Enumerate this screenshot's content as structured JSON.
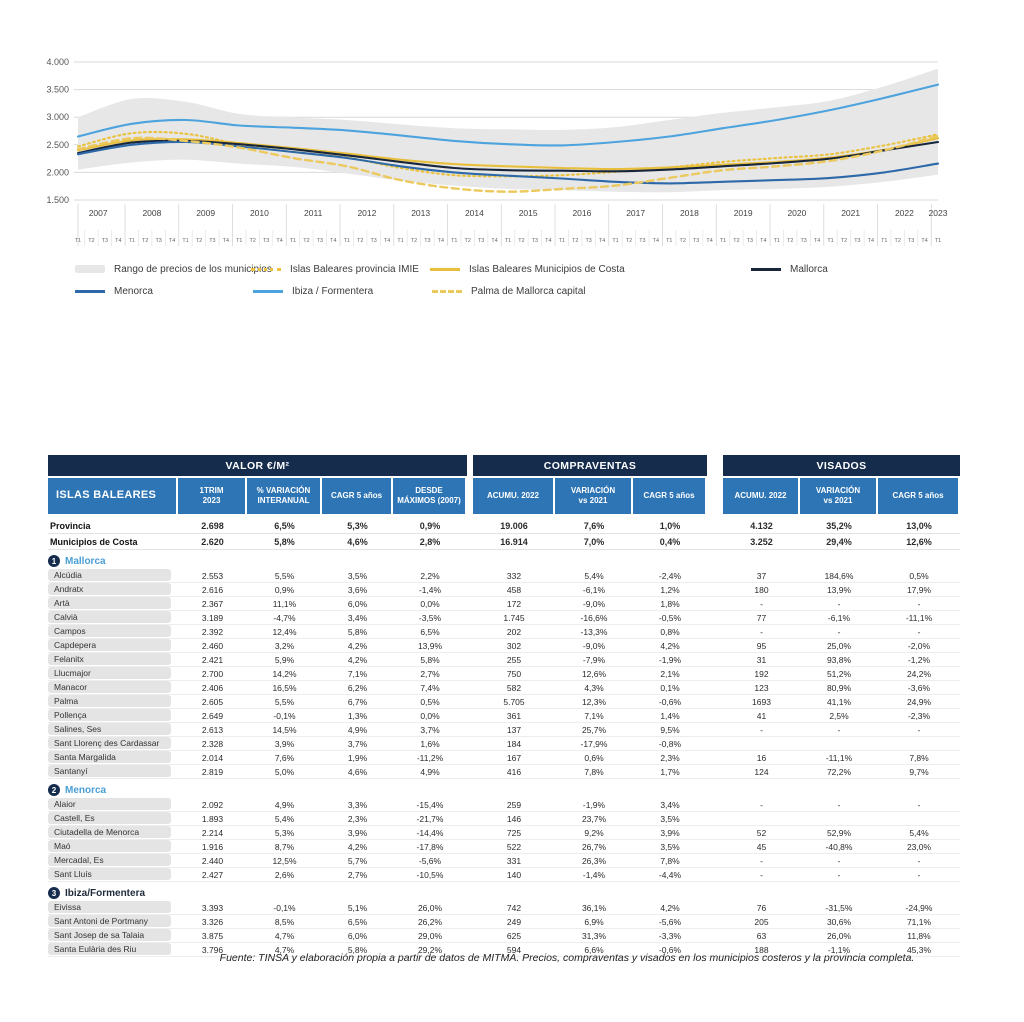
{
  "page": {
    "footer": "Fuente: TINSA y elaboración propia a partir de datos de MITMA. Precios, compraventas y visados en los municipios costeros y la provincia completa."
  },
  "chart_data": {
    "type": "line",
    "title": "",
    "xlabel": "",
    "ylabel": "",
    "ylim": [
      1500,
      4000
    ],
    "y_ticks": [
      "4.000",
      "3.500",
      "3.000",
      "2.500",
      "2.000",
      "1.500"
    ],
    "grid": true,
    "x_years": [
      2007,
      2008,
      2009,
      2010,
      2011,
      2012,
      2013,
      2014,
      2015,
      2016,
      2017,
      2018,
      2019,
      2020,
      2021,
      2022,
      2023
    ],
    "x_axis_note": "quarterly axis T1-T4 from 2007T1 to 2023T1",
    "quarter_labels": [
      "T1",
      "T2",
      "T3",
      "T4"
    ],
    "band": {
      "name": "Rango de precios de los municipios",
      "color": "#e7e7e7",
      "upper": [
        3000,
        3330,
        3280,
        3060,
        3000,
        2950,
        2870,
        2800,
        2780,
        2770,
        2820,
        2950,
        3080,
        3180,
        3300,
        3560,
        3880
      ],
      "lower": [
        2050,
        2180,
        2230,
        2160,
        2100,
        1980,
        1850,
        1760,
        1700,
        1680,
        1650,
        1640,
        1680,
        1700,
        1740,
        1830,
        1960
      ]
    },
    "series": [
      {
        "name": "Islas Baleares provincia IMIE",
        "style": "dotted",
        "color": "#eac23f",
        "values": [
          2470,
          2710,
          2700,
          2510,
          2370,
          2270,
          2080,
          1950,
          1930,
          1950,
          2010,
          2090,
          2190,
          2260,
          2330,
          2490,
          2690
        ]
      },
      {
        "name": "Islas Baleares Municipios de Costa",
        "style": "solid",
        "color": "#e8bf3c",
        "values": [
          2400,
          2580,
          2600,
          2530,
          2440,
          2340,
          2230,
          2150,
          2110,
          2080,
          2060,
          2090,
          2140,
          2190,
          2270,
          2410,
          2620
        ]
      },
      {
        "name": "Mallorca",
        "style": "solid",
        "color": "#18263c",
        "values": [
          2350,
          2540,
          2570,
          2510,
          2420,
          2310,
          2190,
          2080,
          2040,
          2030,
          2020,
          2050,
          2110,
          2170,
          2250,
          2400,
          2550
        ]
      },
      {
        "name": "Menorca",
        "style": "solid",
        "color": "#2d69a8",
        "values": [
          2330,
          2500,
          2550,
          2470,
          2370,
          2260,
          2110,
          2000,
          1940,
          1890,
          1830,
          1800,
          1830,
          1860,
          1900,
          2000,
          2160
        ]
      },
      {
        "name": "Ibiza / Formentera",
        "style": "solid",
        "color": "#4da3dd",
        "values": [
          2650,
          2880,
          2950,
          2850,
          2810,
          2760,
          2670,
          2570,
          2510,
          2490,
          2550,
          2650,
          2800,
          2950,
          3130,
          3350,
          3590
        ]
      },
      {
        "name": "Palma de Mallorca capital",
        "style": "dashed",
        "color": "#ecc95e",
        "values": [
          2420,
          2620,
          2570,
          2450,
          2260,
          2110,
          1860,
          1710,
          1650,
          1700,
          1760,
          1900,
          2040,
          2110,
          2210,
          2400,
          2660
        ]
      }
    ],
    "legend_position": "bottom"
  },
  "legend": {
    "items": [
      {
        "label": "Rango de precios de los municipios",
        "swatch": "band",
        "color": "#e7e7e7"
      },
      {
        "label": "Islas Baleares provincia IMIE",
        "swatch": "dotted",
        "color": "#eac23f"
      },
      {
        "label": "Islas Baleares Municipios de Costa",
        "swatch": "solid",
        "color": "#e8bf3c"
      },
      {
        "label": "Mallorca",
        "swatch": "solid",
        "color": "#18263c"
      },
      {
        "label": "Menorca",
        "swatch": "solid",
        "color": "#2d69a8"
      },
      {
        "label": "Ibiza / Formentera",
        "swatch": "solid",
        "color": "#4da3dd"
      },
      {
        "label": "Palma de Mallorca capital",
        "swatch": "dashed",
        "color": "#ecc95e"
      }
    ]
  },
  "table": {
    "row_header": "ISLAS BALEARES",
    "groups": [
      {
        "title": "VALOR €/M²",
        "cols": [
          "1TRIM\n2023",
          "% VARIACIÓN\nINTERANUAL",
          "CAGR 5 años",
          "DESDE\nMÁXIMOS (2007)"
        ]
      },
      {
        "title": "COMPRAVENTAS",
        "cols": [
          "ACUMU. 2022",
          "VARIACIÓN\nvs 2021",
          "CAGR 5 años"
        ]
      },
      {
        "title": "VISADOS",
        "cols": [
          "ACUMU. 2022",
          "VARIACIÓN\nvs 2021",
          "CAGR 5 años"
        ]
      }
    ],
    "summary_rows": [
      {
        "name": "Provincia",
        "values": [
          "2.698",
          "6,5%",
          "5,3%",
          "0,9%",
          "19.006",
          "7,6%",
          "1,0%",
          "4.132",
          "35,2%",
          "13,0%"
        ]
      },
      {
        "name": "Municipios de Costa",
        "values": [
          "2.620",
          "5,8%",
          "4,6%",
          "2,8%",
          "16.914",
          "7,0%",
          "0,4%",
          "3.252",
          "29,4%",
          "12,6%"
        ]
      }
    ],
    "sections": [
      {
        "num": "1",
        "name": "Mallorca",
        "name_color": "#4a9ed6",
        "rows": [
          {
            "name": "Alcúdia",
            "values": [
              "2.553",
              "5,5%",
              "3,5%",
              "2,2%",
              "332",
              "5,4%",
              "-2,4%",
              "37",
              "184,6%",
              "0,5%"
            ]
          },
          {
            "name": "Andratx",
            "values": [
              "2.616",
              "0,9%",
              "3,6%",
              "-1,4%",
              "458",
              "-6,1%",
              "1,2%",
              "180",
              "13,9%",
              "17,9%"
            ]
          },
          {
            "name": "Artà",
            "values": [
              "2.367",
              "11,1%",
              "6,0%",
              "0,0%",
              "172",
              "-9,0%",
              "1,8%",
              "-",
              "-",
              "-"
            ]
          },
          {
            "name": "Calvià",
            "values": [
              "3.189",
              "-4,7%",
              "3,4%",
              "-3,5%",
              "1.745",
              "-16,6%",
              "-0,5%",
              "77",
              "-6,1%",
              "-11,1%"
            ]
          },
          {
            "name": "Campos",
            "values": [
              "2.392",
              "12,4%",
              "5,8%",
              "6,5%",
              "202",
              "-13,3%",
              "0,8%",
              "-",
              "-",
              "-"
            ]
          },
          {
            "name": "Capdepera",
            "values": [
              "2.460",
              "3,2%",
              "4,2%",
              "13,9%",
              "302",
              "-9,0%",
              "4,2%",
              "95",
              "25,0%",
              "-2,0%"
            ]
          },
          {
            "name": "Felanitx",
            "values": [
              "2.421",
              "5,9%",
              "4,2%",
              "5,8%",
              "255",
              "-7,9%",
              "-1,9%",
              "31",
              "93,8%",
              "-1,2%"
            ]
          },
          {
            "name": "Llucmajor",
            "values": [
              "2.700",
              "14,2%",
              "7,1%",
              "2,7%",
              "750",
              "12,6%",
              "2,1%",
              "192",
              "51,2%",
              "24,2%"
            ]
          },
          {
            "name": "Manacor",
            "values": [
              "2.406",
              "16,5%",
              "6,2%",
              "7,4%",
              "582",
              "4,3%",
              "0,1%",
              "123",
              "80,9%",
              "-3,6%"
            ]
          },
          {
            "name": "Palma",
            "values": [
              "2.605",
              "5,5%",
              "6,7%",
              "0,5%",
              "5.705",
              "12,3%",
              "-0,6%",
              "1693",
              "41,1%",
              "24,9%"
            ]
          },
          {
            "name": "Pollença",
            "values": [
              "2.649",
              "-0,1%",
              "1,3%",
              "0,0%",
              "361",
              "7,1%",
              "1,4%",
              "41",
              "2,5%",
              "-2,3%"
            ]
          },
          {
            "name": "Salines, Ses",
            "values": [
              "2.613",
              "14,5%",
              "4,9%",
              "3,7%",
              "137",
              "25,7%",
              "9,5%",
              "-",
              "-",
              "-"
            ]
          },
          {
            "name": "Sant Llorenç des Cardassar",
            "values": [
              "2.328",
              "3,9%",
              "3,7%",
              "1,6%",
              "184",
              "-17,9%",
              "-0,8%",
              "",
              "",
              ""
            ]
          },
          {
            "name": "Santa Margalida",
            "values": [
              "2.014",
              "7,6%",
              "1,9%",
              "-11,2%",
              "167",
              "0,6%",
              "2,3%",
              "16",
              "-11,1%",
              "7,8%"
            ]
          },
          {
            "name": "Santanyí",
            "values": [
              "2.819",
              "5,0%",
              "4,6%",
              "4,9%",
              "416",
              "7,8%",
              "1,7%",
              "124",
              "72,2%",
              "9,7%"
            ]
          }
        ]
      },
      {
        "num": "2",
        "name": "Menorca",
        "name_color": "#4a9ed6",
        "rows": [
          {
            "name": "Alaior",
            "values": [
              "2.092",
              "4,9%",
              "3,3%",
              "-15,4%",
              "259",
              "-1,9%",
              "3,4%",
              "-",
              "-",
              "-"
            ]
          },
          {
            "name": "Castell, Es",
            "values": [
              "1.893",
              "5,4%",
              "2,3%",
              "-21,7%",
              "146",
              "23,7%",
              "3,5%",
              "",
              "",
              ""
            ]
          },
          {
            "name": "Ciutadella de Menorca",
            "values": [
              "2.214",
              "5,3%",
              "3,9%",
              "-14,4%",
              "725",
              "9,2%",
              "3,9%",
              "52",
              "52,9%",
              "5,4%"
            ]
          },
          {
            "name": "Maó",
            "values": [
              "1.916",
              "8,7%",
              "4,2%",
              "-17,8%",
              "522",
              "26,7%",
              "3,5%",
              "45",
              "-40,8%",
              "23,0%"
            ]
          },
          {
            "name": "Mercadal, Es",
            "values": [
              "2.440",
              "12,5%",
              "5,7%",
              "-5,6%",
              "331",
              "26,3%",
              "7,8%",
              "-",
              "-",
              "-"
            ]
          },
          {
            "name": "Sant Lluís",
            "values": [
              "2.427",
              "2,6%",
              "2,7%",
              "-10,5%",
              "140",
              "-1,4%",
              "-4,4%",
              "-",
              "-",
              "-"
            ]
          }
        ]
      },
      {
        "num": "3",
        "name": "Ibiza/Formentera",
        "name_color": "#1e2a3a",
        "rows": [
          {
            "name": "Eivissa",
            "values": [
              "3.393",
              "-0,1%",
              "5,1%",
              "26,0%",
              "742",
              "36,1%",
              "4,2%",
              "76",
              "-31,5%",
              "-24,9%"
            ]
          },
          {
            "name": "Sant Antoni de Portmany",
            "values": [
              "3.326",
              "8,5%",
              "6,5%",
              "26,2%",
              "249",
              "6,9%",
              "-5,6%",
              "205",
              "30,6%",
              "71,1%"
            ]
          },
          {
            "name": "Sant Josep de sa Talaia",
            "values": [
              "3.875",
              "4,7%",
              "6,0%",
              "29,0%",
              "625",
              "31,3%",
              "-3,3%",
              "63",
              "26,0%",
              "11,8%"
            ]
          },
          {
            "name": "Santa Eulària des Riu",
            "values": [
              "3.796",
              "4,7%",
              "5,8%",
              "29,2%",
              "594",
              "6,6%",
              "-0,6%",
              "188",
              "-1,1%",
              "45,3%"
            ]
          }
        ]
      }
    ]
  },
  "colors": {
    "group_header_bg": "#152c4d",
    "column_header_bg": "#2e75b6",
    "row_pill_bg": "#e4e4e4",
    "section_label_blue": "#4a9ed6"
  }
}
